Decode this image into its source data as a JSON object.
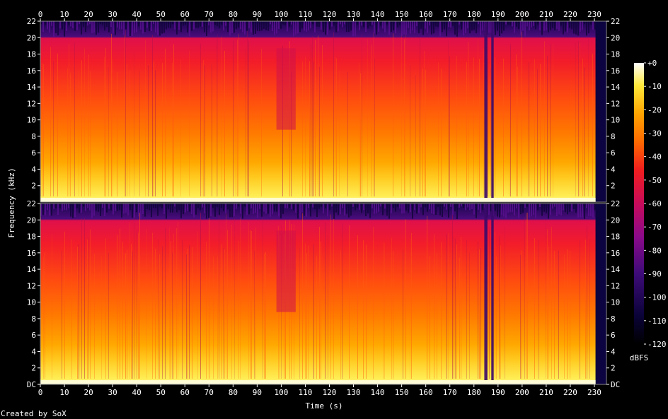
{
  "chart_data": {
    "type": "heatmap",
    "xlabel": "Time (s)",
    "ylabel": "Frequency (kHz)",
    "x_ticks": [
      0,
      10,
      20,
      30,
      40,
      50,
      60,
      70,
      80,
      90,
      100,
      110,
      120,
      130,
      140,
      150,
      160,
      170,
      180,
      190,
      200,
      210,
      220,
      230
    ],
    "x_range": [
      0,
      235
    ],
    "y_range": [
      0,
      22
    ],
    "panels": [
      {
        "name": "channel-1",
        "y_ticks": [
          "2",
          "4",
          "6",
          "8",
          "10",
          "12",
          "14",
          "16",
          "18",
          "20",
          "22"
        ]
      },
      {
        "name": "channel-2",
        "y_ticks": [
          "DC",
          "2",
          "4",
          "6",
          "8",
          "10",
          "12",
          "14",
          "16",
          "18",
          "20",
          "22"
        ]
      }
    ],
    "colorbar": {
      "label": "dBFS",
      "ticks": [
        "+0",
        "-10",
        "-20",
        "-30",
        "-40",
        "-50",
        "-60",
        "-70",
        "-80",
        "-90",
        "-100",
        "-110",
        "-120"
      ],
      "range": [
        -120,
        0
      ]
    },
    "footer": "Created by SoX"
  }
}
